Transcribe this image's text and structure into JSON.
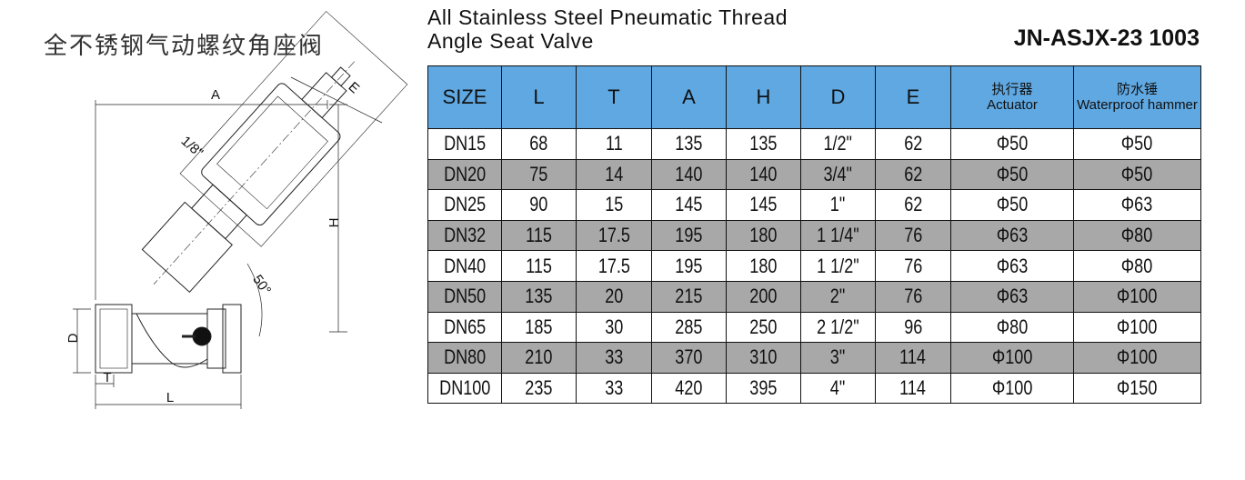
{
  "header": {
    "chinese_title": "全不锈钢气动螺纹角座阀",
    "title_lines": [
      "All Stainless Steel Pneumatic Thread",
      "Angle Seat Valve"
    ],
    "model": "JN-ASJX-23 1003"
  },
  "drawing": {
    "labels": {
      "A": "A",
      "E": "E",
      "thread": "1/8\"",
      "H": "H",
      "angle": "50°",
      "D": "D",
      "T": "T",
      "L": "L"
    }
  },
  "table": {
    "columns": [
      {
        "en": "SIZE"
      },
      {
        "en": "L"
      },
      {
        "en": "T"
      },
      {
        "en": "A"
      },
      {
        "en": "H"
      },
      {
        "en": "D"
      },
      {
        "en": "E"
      },
      {
        "cn": "执行器",
        "en": "Actuator"
      },
      {
        "cn": "防水锤",
        "en": "Waterproof hammer"
      }
    ],
    "rows": [
      [
        "DN15",
        "68",
        "11",
        "135",
        "135",
        "1/2\"",
        "62",
        "Φ50",
        "Φ50"
      ],
      [
        "DN20",
        "75",
        "14",
        "140",
        "140",
        "3/4\"",
        "62",
        "Φ50",
        "Φ50"
      ],
      [
        "DN25",
        "90",
        "15",
        "145",
        "145",
        "1\"",
        "62",
        "Φ50",
        "Φ63"
      ],
      [
        "DN32",
        "115",
        "17.5",
        "195",
        "180",
        "1 1/4\"",
        "76",
        "Φ63",
        "Φ80"
      ],
      [
        "DN40",
        "115",
        "17.5",
        "195",
        "180",
        "1 1/2\"",
        "76",
        "Φ63",
        "Φ80"
      ],
      [
        "DN50",
        "135",
        "20",
        "215",
        "200",
        "2\"",
        "76",
        "Φ63",
        "Φ100"
      ],
      [
        "DN65",
        "185",
        "30",
        "285",
        "250",
        "2 1/2\"",
        "96",
        "Φ80",
        "Φ100"
      ],
      [
        "DN80",
        "210",
        "33",
        "370",
        "310",
        "3\"",
        "114",
        "Φ100",
        "Φ100"
      ],
      [
        "DN100",
        "235",
        "33",
        "420",
        "395",
        "4\"",
        "114",
        "Φ100",
        "Φ150"
      ]
    ]
  }
}
